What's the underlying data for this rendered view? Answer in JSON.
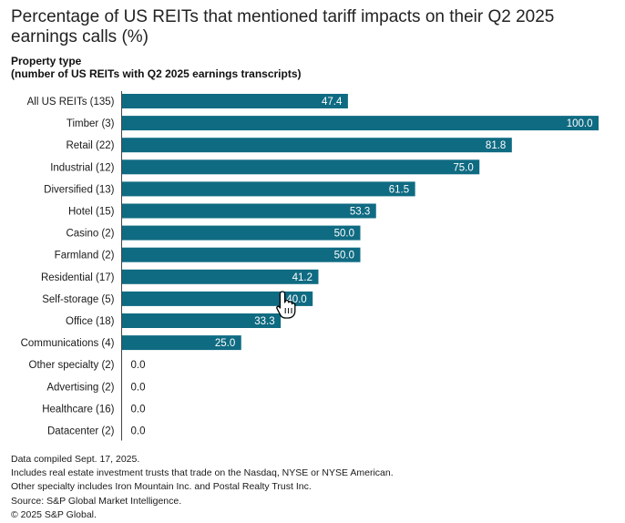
{
  "title": "Percentage of US REITs that mentioned tariff impacts on their Q2 2025 earnings calls (%)",
  "subtitle": {
    "line1": "Property type",
    "line2": "(number of US REITs with Q2 2025 earnings transcripts)"
  },
  "chart_data": {
    "type": "bar",
    "orientation": "horizontal",
    "title": "Percentage of US REITs that mentioned tariff impacts on their Q2 2025 earnings calls (%)",
    "ylabel": "Property type (number of US REITs with Q2 2025 earnings transcripts)",
    "xlim": [
      0,
      100
    ],
    "grid": false,
    "categories": [
      "All US REITs (135)",
      "Timber (3)",
      "Retail (22)",
      "Industrial (12)",
      "Diversified (13)",
      "Hotel (15)",
      "Casino (2)",
      "Farmland (2)",
      "Residential (17)",
      "Self-storage (5)",
      "Office (18)",
      "Communications (4)",
      "Other specialty (2)",
      "Advertising (2)",
      "Healthcare (16)",
      "Datacenter (2)"
    ],
    "values": [
      47.4,
      100.0,
      81.8,
      75.0,
      61.5,
      53.3,
      50.0,
      50.0,
      41.2,
      40.0,
      33.3,
      25.0,
      0.0,
      0.0,
      0.0,
      0.0
    ],
    "labels": [
      "47.4",
      "100.0",
      "81.8",
      "75.0",
      "61.5",
      "53.3",
      "50.0",
      "50.0",
      "41.2",
      "40.0",
      "33.3",
      "25.0",
      "0.0",
      "0.0",
      "0.0",
      "0.0"
    ],
    "bar_color": "#0f6b82"
  },
  "notes": [
    "Data compiled Sept. 17, 2025.",
    "Includes real estate investment trusts that trade on the Nasdaq, NYSE or NYSE American.",
    "Other specialty includes Iron Mountain Inc. and Postal Realty Trust Inc.",
    "Source: S&P Global Market Intelligence.",
    "© 2025 S&P Global."
  ]
}
